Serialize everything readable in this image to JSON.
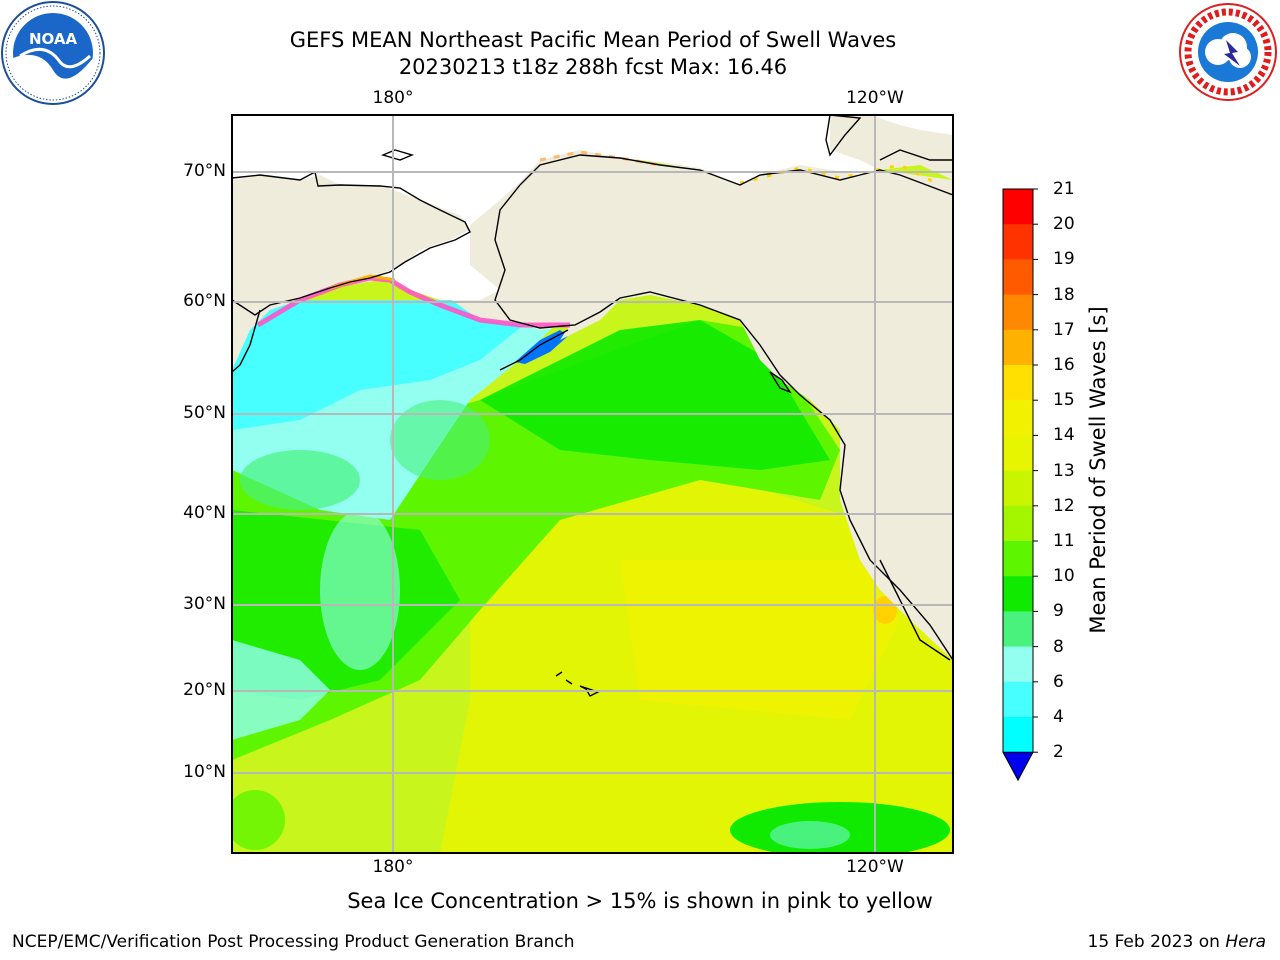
{
  "title_line1": "GEFS MEAN Northeast Pacific Mean Period of Swell Waves",
  "title_line2": "20230213 t18z 288h fcst   Max: 16.46",
  "logos": {
    "left": "NOAA",
    "right": "NATIONAL WEATHER SERVICE"
  },
  "map": {
    "lon_labels_top": [
      "180°",
      "120°W"
    ],
    "lon_labels_bottom": [
      "180°",
      "120°W"
    ],
    "lat_labels": [
      "70°N",
      "60°N",
      "50°N",
      "40°N",
      "30°N",
      "20°N",
      "10°N"
    ],
    "colors": {
      "land": "#efecdb",
      "ocean_bg": "#c8f51c",
      "grid": "#b8b8b8",
      "coast": "#000000"
    }
  },
  "colorbar": {
    "label": "Mean Period of Swell Waves [s]",
    "ticks": [
      "21",
      "20",
      "19",
      "18",
      "17",
      "16",
      "15",
      "14",
      "13",
      "12",
      "11",
      "10",
      "9",
      "8",
      "6",
      "4",
      "2"
    ],
    "colors": [
      "#ff0000",
      "#ff3300",
      "#ff5a00",
      "#ff8800",
      "#ffb100",
      "#ffe000",
      "#f2f200",
      "#e8f500",
      "#c9f500",
      "#a4f500",
      "#5ef500",
      "#10ea00",
      "#49f27d",
      "#92fff0",
      "#47ffff",
      "#00ffff",
      "#00dfff",
      "#0074ff",
      "#0000ee"
    ]
  },
  "sea_ice_note": "Sea Ice Concentration > 15% is shown in pink to yellow",
  "footer_left": "NCEP/EMC/Verification Post Processing Product Generation Branch",
  "footer_right_date": "15 Feb 2023 on ",
  "footer_right_host": "Hera"
}
